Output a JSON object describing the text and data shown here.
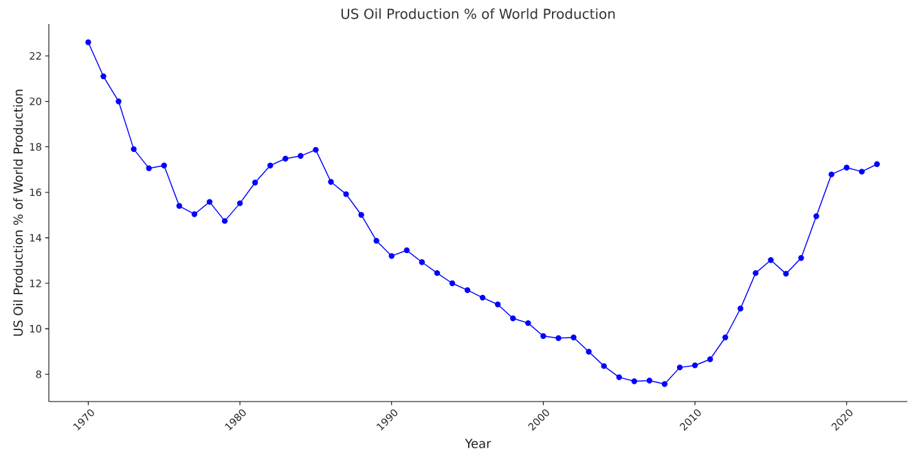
{
  "chart_data": {
    "type": "line",
    "title": "US Oil Production % of World Production",
    "xlabel": "Year",
    "ylabel": "US Oil Production % of World Production",
    "x": [
      1970,
      1971,
      1972,
      1973,
      1974,
      1975,
      1976,
      1977,
      1978,
      1979,
      1980,
      1981,
      1982,
      1983,
      1984,
      1985,
      1986,
      1987,
      1988,
      1989,
      1990,
      1991,
      1992,
      1993,
      1994,
      1995,
      1996,
      1997,
      1998,
      1999,
      2000,
      2001,
      2002,
      2003,
      2004,
      2005,
      2006,
      2007,
      2008,
      2009,
      2010,
      2011,
      2012,
      2013,
      2014,
      2015,
      2016,
      2017,
      2018,
      2019,
      2020,
      2021,
      2022
    ],
    "values": [
      22.6,
      21.1,
      20.0,
      17.9,
      17.06,
      17.18,
      15.4,
      15.04,
      15.58,
      14.74,
      15.52,
      16.43,
      17.18,
      17.48,
      17.6,
      17.87,
      16.46,
      15.92,
      15.01,
      13.87,
      13.2,
      13.45,
      12.93,
      12.45,
      12.0,
      11.7,
      11.37,
      11.07,
      10.46,
      10.25,
      9.68,
      9.59,
      9.62,
      8.99,
      8.36,
      7.87,
      7.69,
      7.72,
      7.57,
      8.3,
      8.39,
      8.66,
      9.62,
      10.89,
      12.45,
      13.02,
      12.42,
      13.11,
      14.95,
      16.79,
      17.09,
      16.91,
      17.24
    ],
    "color": "#0000ff",
    "marker": "circle",
    "xlim": [
      1967.4,
      2024.0
    ],
    "ylim": [
      6.8,
      23.4
    ],
    "xticks": [
      1970,
      1980,
      1990,
      2000,
      2010,
      2020
    ],
    "yticks": [
      8,
      10,
      12,
      14,
      16,
      18,
      20,
      22
    ]
  }
}
